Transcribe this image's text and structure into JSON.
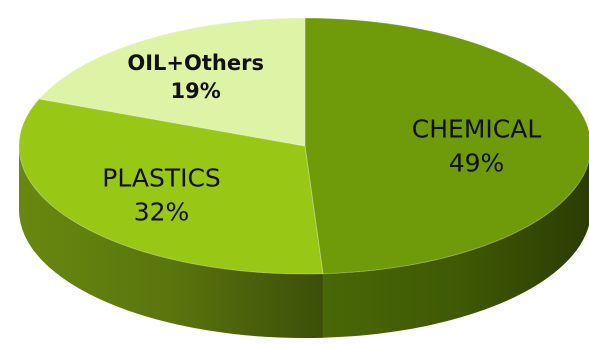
{
  "chart_data": {
    "type": "pie",
    "style": "3d",
    "legend": "none",
    "slices": [
      {
        "label": "CHEMICAL",
        "value": 49,
        "value_text": "49%",
        "color": "#6f9a0a",
        "side_color": "#4d6d06",
        "bold": false
      },
      {
        "label": "PLASTICS",
        "value": 32,
        "value_text": "32%",
        "color": "#99c715",
        "side_color": "#6d8f10",
        "bold": false
      },
      {
        "label": "OIL+Others",
        "value": 19,
        "value_text": "19%",
        "color": "#ddf3a6",
        "side_color": "#b7d47e",
        "bold": true
      }
    ]
  }
}
